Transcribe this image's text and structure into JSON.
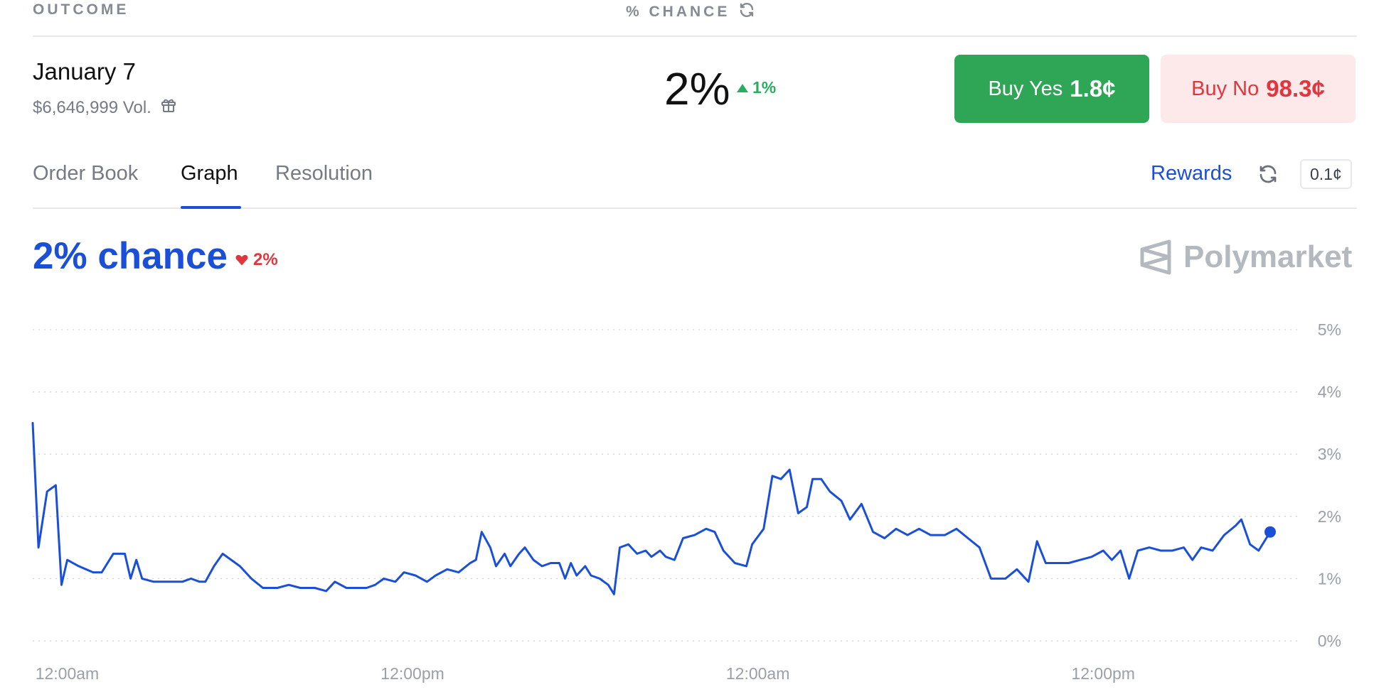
{
  "header": {
    "outcome_label": "OUTCOME",
    "chance_label": "% CHANCE"
  },
  "outcome": {
    "title": "January 7",
    "volume": "$6,646,999 Vol.",
    "chance": "2%",
    "change": "1%"
  },
  "buy_yes": {
    "label": "Buy Yes",
    "price": "1.8¢"
  },
  "buy_no": {
    "label": "Buy No",
    "price": "98.3¢"
  },
  "tabs": [
    {
      "label": "Order Book",
      "active": false
    },
    {
      "label": "Graph",
      "active": true
    },
    {
      "label": "Resolution",
      "active": false
    }
  ],
  "rewards_label": "Rewards",
  "tick_size": "0.1¢",
  "graph": {
    "chance_title": "2% chance",
    "change": "2%",
    "brand": "Polymarket"
  },
  "colors": {
    "accent": "#1a4fd8",
    "yes": "#2fa656",
    "no_text": "#e0363f",
    "no_bg": "#fde9ea",
    "up": "#27ae60"
  },
  "chart_data": {
    "type": "line",
    "y_ticks": [
      "5%",
      "4%",
      "3%",
      "2%",
      "1%",
      "0%"
    ],
    "ylim": [
      0,
      5
    ],
    "x_ticks": [
      "12:00am",
      "12:00pm",
      "12:00am",
      "12:00pm"
    ],
    "x_tick_positions": [
      1,
      13,
      25,
      37
    ],
    "xlim": [
      0,
      43
    ],
    "grid": true,
    "series": [
      {
        "values": [
          [
            0,
            3.5
          ],
          [
            0.2,
            1.5
          ],
          [
            0.5,
            2.4
          ],
          [
            0.8,
            2.5
          ],
          [
            1.0,
            0.9
          ],
          [
            1.2,
            1.3
          ],
          [
            1.6,
            1.2
          ],
          [
            2.1,
            1.1
          ],
          [
            2.4,
            1.1
          ],
          [
            2.8,
            1.4
          ],
          [
            3.2,
            1.4
          ],
          [
            3.4,
            1.0
          ],
          [
            3.6,
            1.3
          ],
          [
            3.8,
            1.0
          ],
          [
            4.2,
            0.95
          ],
          [
            4.8,
            0.95
          ],
          [
            5.2,
            0.95
          ],
          [
            5.5,
            1.0
          ],
          [
            5.8,
            0.95
          ],
          [
            6.0,
            0.95
          ],
          [
            6.3,
            1.2
          ],
          [
            6.6,
            1.4
          ],
          [
            6.9,
            1.3
          ],
          [
            7.2,
            1.2
          ],
          [
            7.6,
            1.0
          ],
          [
            8.0,
            0.85
          ],
          [
            8.5,
            0.85
          ],
          [
            8.9,
            0.9
          ],
          [
            9.3,
            0.85
          ],
          [
            9.8,
            0.85
          ],
          [
            10.2,
            0.8
          ],
          [
            10.5,
            0.95
          ],
          [
            10.9,
            0.85
          ],
          [
            11.3,
            0.85
          ],
          [
            11.6,
            0.85
          ],
          [
            11.9,
            0.9
          ],
          [
            12.2,
            1.0
          ],
          [
            12.6,
            0.95
          ],
          [
            12.9,
            1.1
          ],
          [
            13.3,
            1.05
          ],
          [
            13.7,
            0.95
          ],
          [
            14.0,
            1.05
          ],
          [
            14.4,
            1.15
          ],
          [
            14.8,
            1.1
          ],
          [
            15.2,
            1.25
          ],
          [
            15.4,
            1.3
          ],
          [
            15.6,
            1.75
          ],
          [
            15.9,
            1.5
          ],
          [
            16.1,
            1.2
          ],
          [
            16.4,
            1.4
          ],
          [
            16.6,
            1.2
          ],
          [
            16.9,
            1.4
          ],
          [
            17.1,
            1.5
          ],
          [
            17.4,
            1.3
          ],
          [
            17.7,
            1.2
          ],
          [
            18.0,
            1.25
          ],
          [
            18.3,
            1.25
          ],
          [
            18.5,
            1.0
          ],
          [
            18.7,
            1.25
          ],
          [
            18.9,
            1.05
          ],
          [
            19.2,
            1.2
          ],
          [
            19.4,
            1.05
          ],
          [
            19.7,
            1.0
          ],
          [
            20.0,
            0.9
          ],
          [
            20.2,
            0.75
          ],
          [
            20.4,
            1.5
          ],
          [
            20.7,
            1.55
          ],
          [
            21.0,
            1.4
          ],
          [
            21.3,
            1.45
          ],
          [
            21.5,
            1.35
          ],
          [
            21.8,
            1.45
          ],
          [
            22.0,
            1.35
          ],
          [
            22.3,
            1.3
          ],
          [
            22.6,
            1.65
          ],
          [
            23.0,
            1.7
          ],
          [
            23.4,
            1.8
          ],
          [
            23.7,
            1.75
          ],
          [
            24.0,
            1.45
          ],
          [
            24.4,
            1.25
          ],
          [
            24.8,
            1.2
          ],
          [
            25.0,
            1.55
          ],
          [
            25.4,
            1.8
          ],
          [
            25.7,
            2.65
          ],
          [
            26.0,
            2.6
          ],
          [
            26.3,
            2.75
          ],
          [
            26.6,
            2.05
          ],
          [
            26.9,
            2.15
          ],
          [
            27.1,
            2.6
          ],
          [
            27.4,
            2.6
          ],
          [
            27.7,
            2.4
          ],
          [
            28.1,
            2.25
          ],
          [
            28.4,
            1.95
          ],
          [
            28.8,
            2.2
          ],
          [
            29.2,
            1.75
          ],
          [
            29.6,
            1.65
          ],
          [
            30.0,
            1.8
          ],
          [
            30.4,
            1.7
          ],
          [
            30.8,
            1.8
          ],
          [
            31.2,
            1.7
          ],
          [
            31.7,
            1.7
          ],
          [
            32.1,
            1.8
          ],
          [
            32.5,
            1.65
          ],
          [
            32.9,
            1.5
          ],
          [
            33.3,
            1.0
          ],
          [
            33.8,
            1.0
          ],
          [
            34.2,
            1.15
          ],
          [
            34.6,
            0.95
          ],
          [
            34.9,
            1.6
          ],
          [
            35.2,
            1.25
          ],
          [
            35.6,
            1.25
          ],
          [
            36.0,
            1.25
          ],
          [
            36.4,
            1.3
          ],
          [
            36.8,
            1.35
          ],
          [
            37.2,
            1.45
          ],
          [
            37.5,
            1.3
          ],
          [
            37.8,
            1.45
          ],
          [
            38.1,
            1.0
          ],
          [
            38.4,
            1.45
          ],
          [
            38.8,
            1.5
          ],
          [
            39.2,
            1.45
          ],
          [
            39.6,
            1.45
          ],
          [
            40.0,
            1.5
          ],
          [
            40.3,
            1.3
          ],
          [
            40.6,
            1.5
          ],
          [
            41.0,
            1.45
          ],
          [
            41.4,
            1.7
          ],
          [
            41.8,
            1.85
          ],
          [
            42.0,
            1.95
          ],
          [
            42.3,
            1.55
          ],
          [
            42.6,
            1.45
          ],
          [
            43.0,
            1.75
          ]
        ]
      }
    ]
  }
}
